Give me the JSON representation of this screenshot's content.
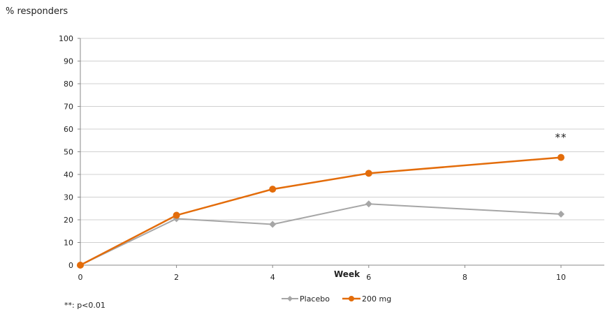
{
  "chart_data": {
    "type": "line",
    "xlabel": "Week",
    "ylabel": "% responders",
    "x_ticks": [
      0,
      2,
      4,
      6,
      8,
      10
    ],
    "y_ticks": [
      0,
      10,
      20,
      30,
      40,
      50,
      60,
      70,
      80,
      90,
      100
    ],
    "xlim": [
      0,
      10
    ],
    "ylim": [
      0,
      100
    ],
    "grid": "horizontal",
    "legend_position": "bottom",
    "series": [
      {
        "name": "Placebo",
        "color": "#a6a6a6",
        "marker": "diamond",
        "x": [
          0,
          2,
          4,
          6,
          10
        ],
        "y": [
          0,
          20.5,
          18,
          27,
          22.5
        ]
      },
      {
        "name": "200 mg",
        "color": "#e36c0a",
        "marker": "circle",
        "x": [
          0,
          2,
          4,
          6,
          10
        ],
        "y": [
          0,
          22,
          33.5,
          40.5,
          47.5
        ]
      }
    ],
    "annotations": [
      {
        "text": "**",
        "x": 10,
        "y": 54
      }
    ],
    "footnote": "**: p<0.01"
  }
}
